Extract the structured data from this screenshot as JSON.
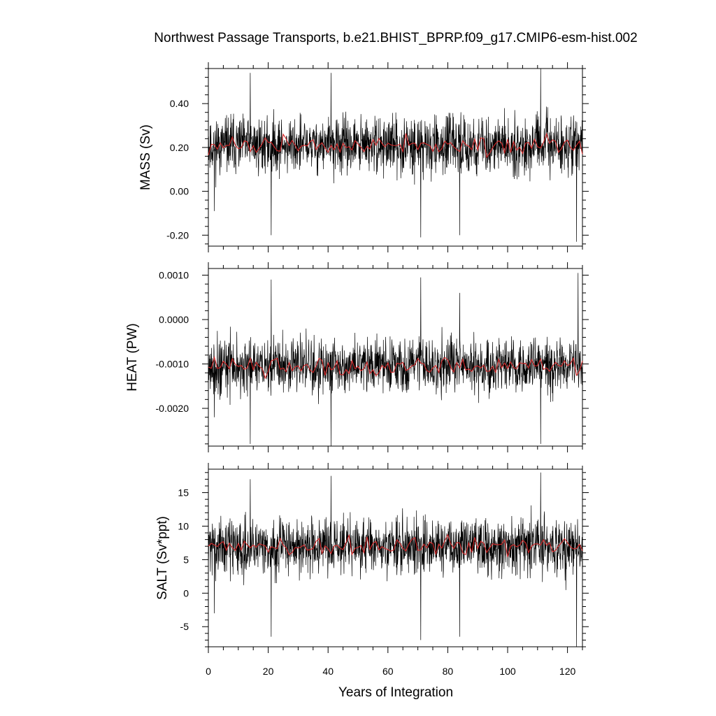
{
  "chart_data": [
    {
      "type": "line",
      "title": "Northwest Passage Transports, b.e21.BHIST_BPRP.f09_g17.CMIP6-esm-hist.002",
      "ylabel": "MASS (Sv)",
      "xlabel": "Years of Integration",
      "xlim": [
        0,
        125
      ],
      "ylim": [
        -0.25,
        0.56
      ],
      "yticks": [
        "0.40",
        "0.20",
        "0.00",
        "-0.20"
      ],
      "ytick_values": [
        0.4,
        0.2,
        0.0,
        -0.2
      ],
      "series": [
        {
          "color": "#000000",
          "x_start": 0,
          "x_step": 0.0833,
          "mean": 0.21,
          "amplitude": 0.09,
          "seed": 11,
          "spikes": [
            {
              "x": 14.0,
              "y": 0.54
            },
            {
              "x": 21.0,
              "y": -0.2
            },
            {
              "x": 41.0,
              "y": 0.54
            },
            {
              "x": 71.0,
              "y": -0.21
            },
            {
              "x": 84.0,
              "y": -0.2
            },
            {
              "x": 111.0,
              "y": 0.56
            },
            {
              "x": 123.0,
              "y": -0.23
            },
            {
              "x": 2.0,
              "y": -0.09
            }
          ]
        },
        {
          "color": "#d62728",
          "x_start": 0,
          "x_step": 1,
          "mean": 0.21,
          "amplitude": 0.03,
          "seed": 12
        }
      ]
    },
    {
      "type": "line",
      "ylabel": "HEAT (PW)",
      "xlim": [
        0,
        125
      ],
      "ylim": [
        -0.00285,
        0.00115
      ],
      "yticks": [
        "0.0010",
        "0.0000",
        "-0.0010",
        "-0.0020"
      ],
      "ytick_values": [
        0.001,
        0.0,
        -0.001,
        -0.002
      ],
      "series": [
        {
          "color": "#000000",
          "x_start": 0,
          "x_step": 0.0833,
          "mean": -0.00105,
          "amplitude": 0.00045,
          "seed": 21,
          "spikes": [
            {
              "x": 21.0,
              "y": 0.0009
            },
            {
              "x": 71.0,
              "y": 0.00095
            },
            {
              "x": 84.0,
              "y": 0.0006
            },
            {
              "x": 123.5,
              "y": 0.00105
            },
            {
              "x": 14.0,
              "y": -0.0028
            },
            {
              "x": 41.0,
              "y": -0.00285
            },
            {
              "x": 111.0,
              "y": -0.0028
            },
            {
              "x": 2.0,
              "y": -0.0022
            }
          ]
        },
        {
          "color": "#d62728",
          "x_start": 0,
          "x_step": 1,
          "mean": -0.00105,
          "amplitude": 0.00015,
          "seed": 22
        }
      ]
    },
    {
      "type": "line",
      "ylabel": "SALT (Sv*ppt)",
      "xlim": [
        0,
        125
      ],
      "ylim": [
        -8,
        18.5
      ],
      "yticks": [
        "15",
        "10",
        "5",
        "0",
        "-5"
      ],
      "ytick_values": [
        15,
        10,
        5,
        0,
        -5
      ],
      "xticks": [
        "0",
        "20",
        "40",
        "60",
        "80",
        "100",
        "120"
      ],
      "xtick_values": [
        0,
        20,
        40,
        60,
        80,
        100,
        120
      ],
      "series": [
        {
          "color": "#000000",
          "x_start": 0,
          "x_step": 0.0833,
          "mean": 7.0,
          "amplitude": 3.0,
          "seed": 31,
          "spikes": [
            {
              "x": 14.0,
              "y": 17.0
            },
            {
              "x": 21.0,
              "y": -6.5
            },
            {
              "x": 41.0,
              "y": 17.5
            },
            {
              "x": 71.0,
              "y": -7.0
            },
            {
              "x": 84.0,
              "y": -6.5
            },
            {
              "x": 111.0,
              "y": 18.0
            },
            {
              "x": 123.0,
              "y": -8.0
            },
            {
              "x": 2.0,
              "y": -3.0
            }
          ]
        },
        {
          "color": "#d62728",
          "x_start": 0,
          "x_step": 1,
          "mean": 7.0,
          "amplitude": 1.0,
          "seed": 32
        }
      ]
    }
  ]
}
